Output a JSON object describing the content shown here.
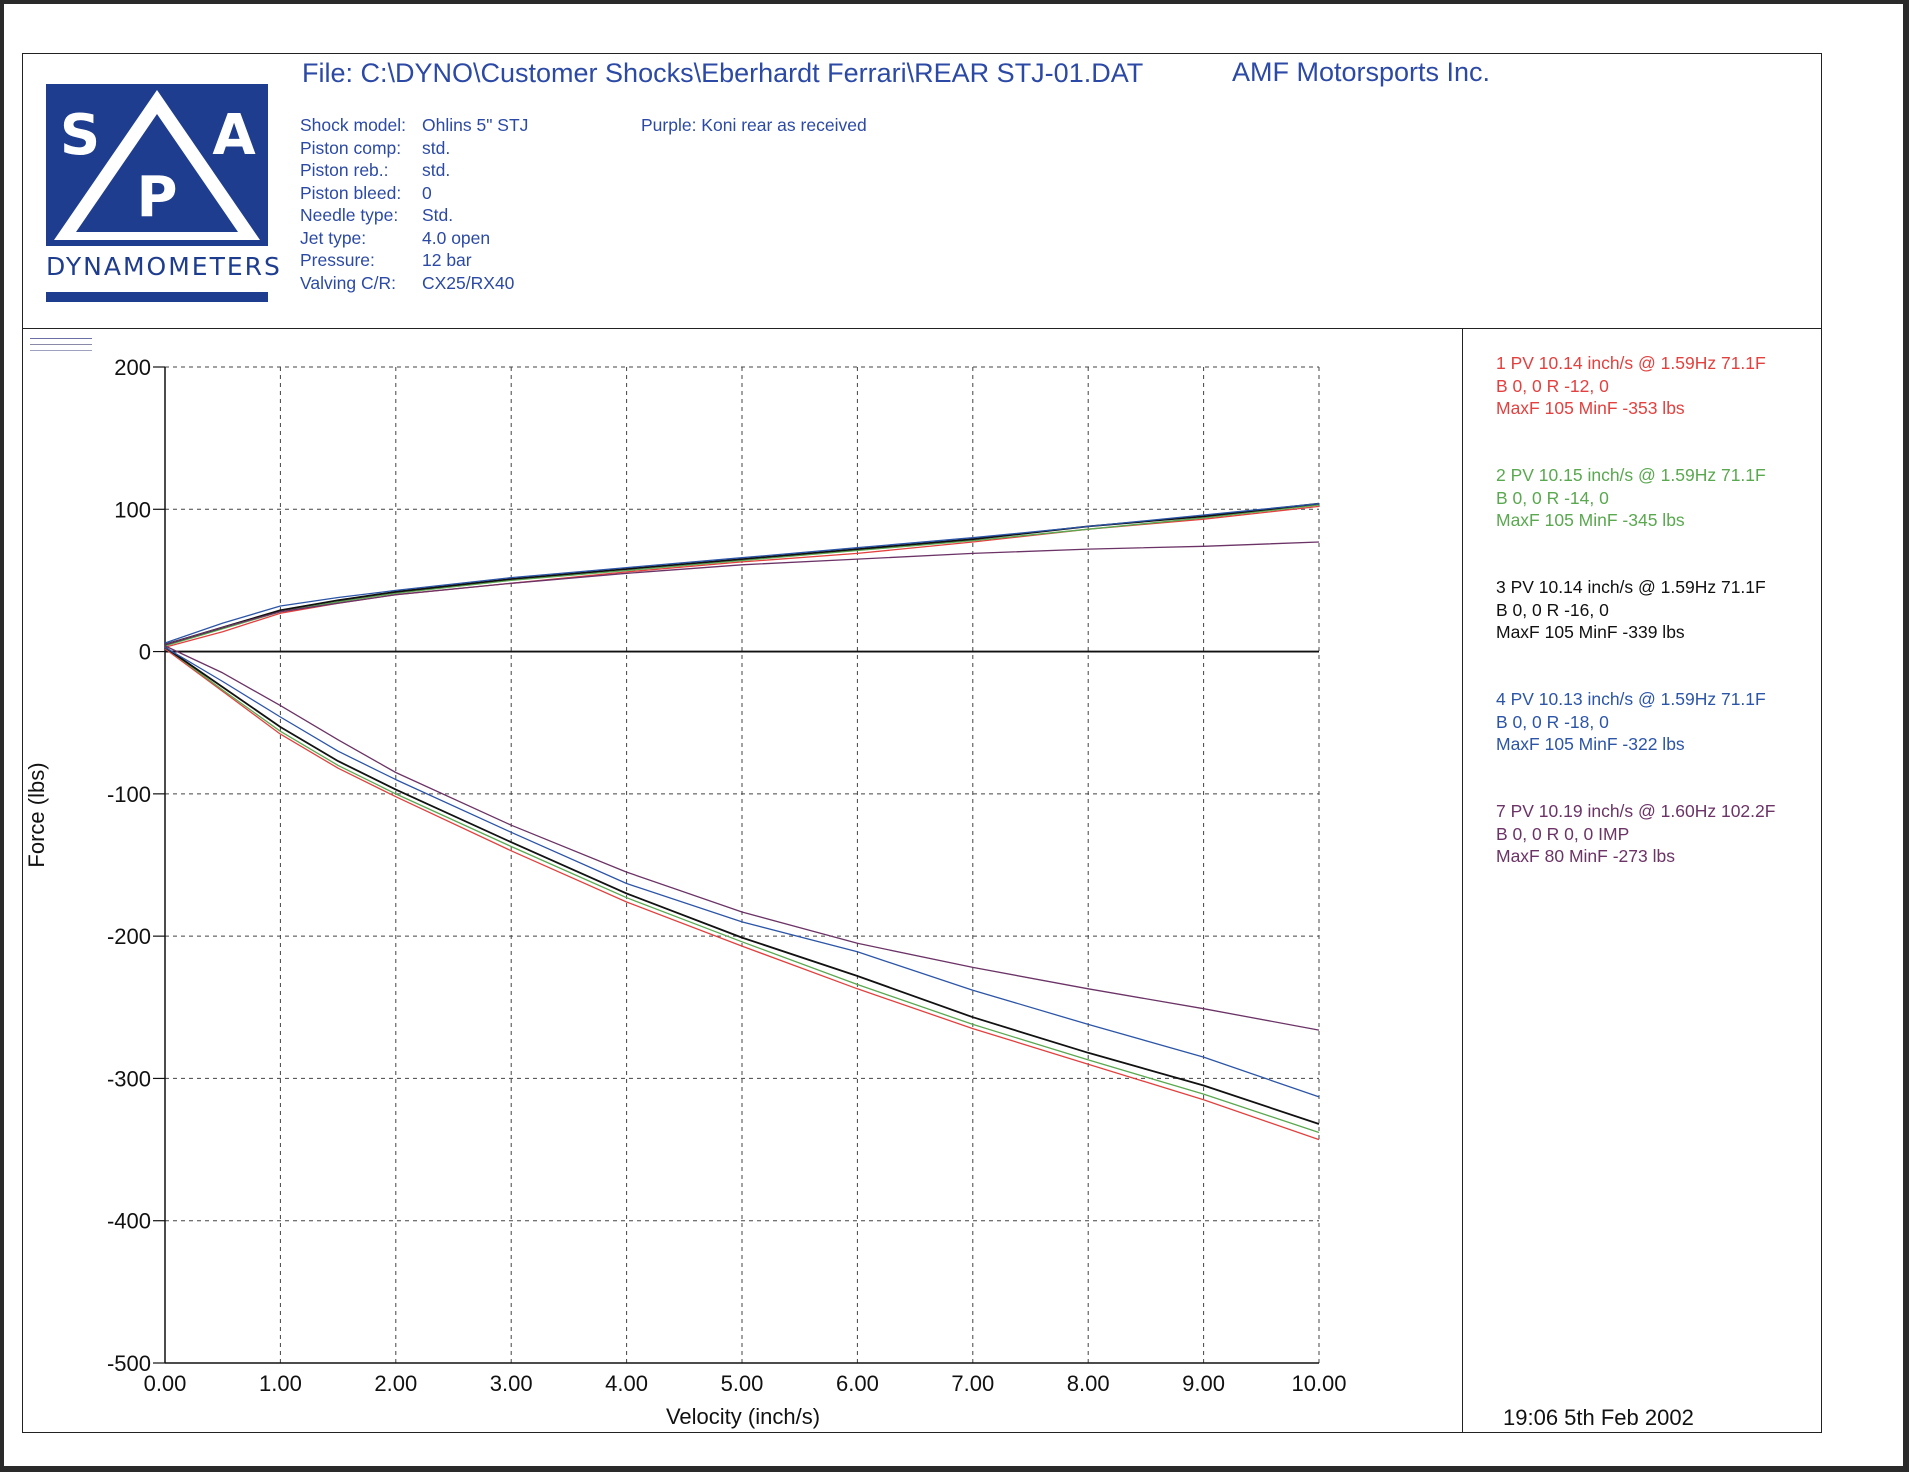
{
  "header": {
    "file_title": "File: C:\\DYNO\\Customer Shocks\\Eberhardt Ferrari\\REAR STJ-01.DAT",
    "company": "AMF Motorsports Inc.",
    "note": "Purple: Koni rear as received"
  },
  "logo": {
    "letters": [
      "S",
      "P",
      "A"
    ],
    "caption": "DYNAMOMETERS",
    "color": "#1e3d8f"
  },
  "specs": [
    {
      "label": "Shock model:",
      "value": "Ohlins 5\" STJ"
    },
    {
      "label": "Piston comp:",
      "value": "std."
    },
    {
      "label": "Piston reb.:",
      "value": "std."
    },
    {
      "label": "Piston bleed:",
      "value": "0"
    },
    {
      "label": "Needle type:",
      "value": "Std."
    },
    {
      "label": "Jet type:",
      "value": "4.0 open"
    },
    {
      "label": "Pressure:",
      "value": "12 bar"
    },
    {
      "label": "Valving C/R:",
      "value": "CX25/RX40"
    }
  ],
  "runs": [
    {
      "line1": "1 PV 10.14 inch/s @ 1.59Hz 71.1F",
      "line2": "B   0,  0    R -12,  0",
      "line3": "MaxF   105   MinF  -353 lbs",
      "color": "#e2413f"
    },
    {
      "line1": "2 PV 10.15 inch/s @ 1.59Hz 71.1F",
      "line2": "B   0,  0    R -14,  0",
      "line3": "MaxF   105   MinF  -345 lbs",
      "color": "#5aa84f"
    },
    {
      "line1": "3 PV 10.14 inch/s @ 1.59Hz 71.1F",
      "line2": "B   0,  0    R -16,  0",
      "line3": "MaxF   105   MinF  -339 lbs",
      "color": "#111111"
    },
    {
      "line1": "4 PV 10.13 inch/s @ 1.59Hz 71.1F",
      "line2": "B   0,  0    R -18,  0",
      "line3": "MaxF   105   MinF  -322 lbs",
      "color": "#2c55a8"
    },
    {
      "line1": "7 PV 10.19 inch/s @ 1.60Hz 102.2F",
      "line2": "B   0,  0    R   0,  0 IMP",
      "line3": "MaxF   80   MinF  -273 lbs",
      "color": "#6b3366"
    }
  ],
  "datestamp": "19:06  5th Feb 2002",
  "chart_data": {
    "type": "line",
    "title": "",
    "xlabel": "Velocity (inch/s)",
    "ylabel": "Force (lbs)",
    "xlim": [
      0,
      10
    ],
    "ylim": [
      -500,
      200
    ],
    "xticks": [
      "0.00",
      "1.00",
      "2.00",
      "3.00",
      "4.00",
      "5.00",
      "6.00",
      "7.00",
      "8.00",
      "9.00",
      "10.00"
    ],
    "yticks": [
      "200",
      "100",
      "0",
      "-100",
      "-200",
      "-300",
      "-400",
      "-500"
    ],
    "grid": true,
    "x": [
      0,
      0.5,
      1,
      1.5,
      2,
      3,
      4,
      5,
      6,
      7,
      8,
      9,
      10
    ],
    "series": [
      {
        "color": "#e2413f",
        "rebound": [
          3,
          14,
          27,
          34,
          40,
          48,
          56,
          63,
          69,
          77,
          86,
          93,
          102
        ],
        "compression": [
          2,
          -28,
          -58,
          -82,
          -102,
          -140,
          -176,
          -207,
          -237,
          -265,
          -290,
          -315,
          -343
        ]
      },
      {
        "color": "#5aa84f",
        "rebound": [
          4,
          16,
          28,
          35,
          41,
          50,
          57,
          64,
          71,
          78,
          86,
          94,
          103
        ],
        "compression": [
          3,
          -27,
          -56,
          -80,
          -100,
          -137,
          -173,
          -204,
          -234,
          -262,
          -287,
          -311,
          -338
        ]
      },
      {
        "color": "#111111",
        "rebound": [
          5,
          17,
          29,
          36,
          42,
          51,
          58,
          65,
          72,
          79,
          88,
          95,
          104
        ],
        "compression": [
          3,
          -25,
          -53,
          -77,
          -97,
          -134,
          -170,
          -201,
          -228,
          -257,
          -282,
          -305,
          -332
        ]
      },
      {
        "color": "#2c55a8",
        "rebound": [
          6,
          20,
          32,
          38,
          43,
          52,
          59,
          66,
          73,
          80,
          88,
          96,
          104
        ],
        "compression": [
          3,
          -21,
          -46,
          -70,
          -90,
          -127,
          -163,
          -190,
          -211,
          -238,
          -262,
          -285,
          -313
        ]
      },
      {
        "color": "#6b3366",
        "rebound": [
          5,
          17,
          28,
          34,
          40,
          48,
          55,
          61,
          65,
          69,
          72,
          74,
          77
        ],
        "compression": [
          4,
          -15,
          -38,
          -62,
          -85,
          -122,
          -155,
          -183,
          -205,
          -222,
          -237,
          -251,
          -266
        ]
      }
    ]
  }
}
